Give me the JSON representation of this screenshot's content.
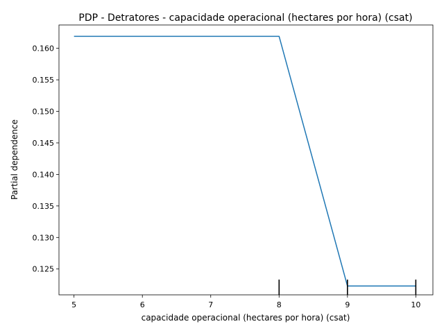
{
  "chart_data": {
    "type": "line",
    "title": "PDP - Detratores - capacidade operacional (hectares por hora) (csat)",
    "xlabel": "capacidade operacional (hectares por hora) (csat)",
    "ylabel": "Partial dependence",
    "xlim": [
      4.78,
      10.25
    ],
    "ylim": [
      0.1209,
      0.1637
    ],
    "x_ticks": [
      5,
      6,
      7,
      8,
      9,
      10
    ],
    "x_tick_labels": [
      "5",
      "6",
      "7",
      "8",
      "9",
      "10"
    ],
    "y_ticks": [
      0.125,
      0.13,
      0.135,
      0.14,
      0.145,
      0.15,
      0.155,
      0.16
    ],
    "y_tick_labels": [
      "0.125",
      "0.130",
      "0.135",
      "0.140",
      "0.145",
      "0.150",
      "0.155",
      "0.160"
    ],
    "grid": false,
    "series": [
      {
        "color": "#1f77b4",
        "x": [
          5,
          8,
          9,
          10
        ],
        "y": [
          0.1619,
          0.1619,
          0.1223,
          0.1223
        ]
      }
    ],
    "rug": {
      "color": "#000000",
      "x": [
        8,
        9,
        10
      ]
    }
  }
}
